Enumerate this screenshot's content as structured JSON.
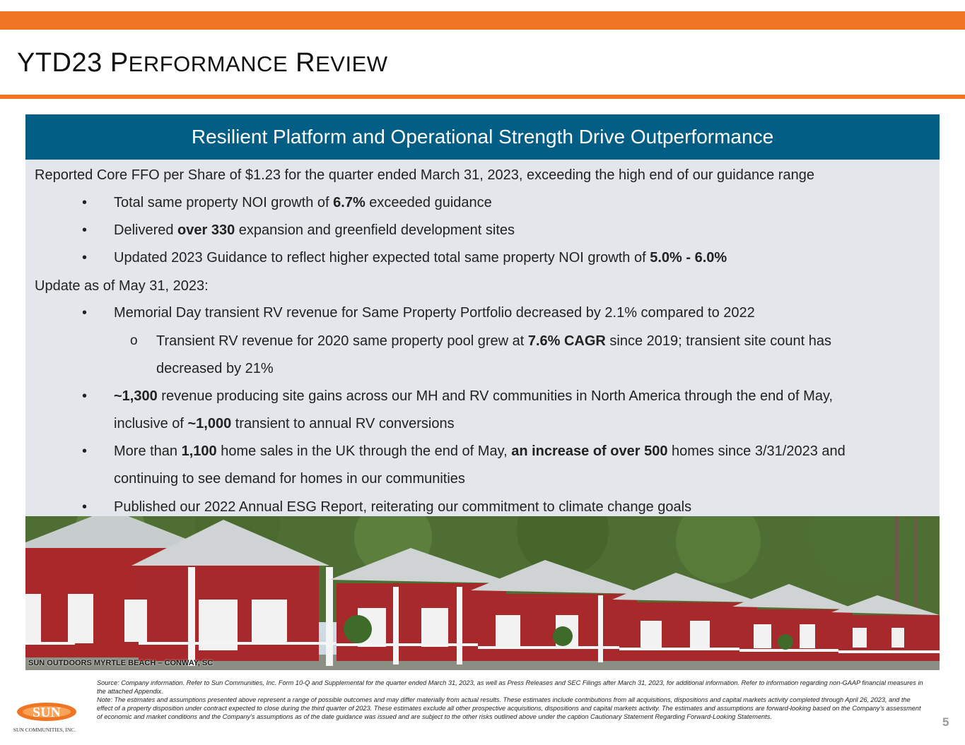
{
  "title_part1": "YTD23 P",
  "title_part2": "ERFORMANCE",
  "title_part3": " R",
  "title_part4": "EVIEW",
  "header": "Resilient Platform and Operational Strength Drive Outperformance",
  "intro": "Reported Core FFO per Share of $1.23 for the quarter ended March 31, 2023, exceeding the high end of our guidance range",
  "b1_a": "Total same property NOI growth of ",
  "b1_b": "6.7%",
  "b1_c": " exceeded guidance",
  "b2_a": "Delivered ",
  "b2_b": "over 330",
  "b2_c": " expansion and greenfield development sites",
  "b3_a": "Updated 2023 Guidance to reflect higher expected total same property NOI growth of ",
  "b3_b": "5.0% - 6.0%",
  "update_heading": "Update as of May 31, 2023:",
  "b4": "Memorial Day transient RV revenue for Same Property Portfolio decreased by 2.1% compared to 2022",
  "sub1_a": "Transient RV revenue for 2020 same property pool grew at ",
  "sub1_b": "7.6% CAGR",
  "sub1_c": " since 2019; transient site count has",
  "sub1_d": "decreased by 21%",
  "b5_a": "~1,300",
  "b5_b": " revenue producing site gains across our MH and RV communities in North America through the end of May,",
  "b5_c": "inclusive of ",
  "b5_d": "~1,000",
  "b5_e": " transient to annual RV conversions",
  "b6_a": "More than ",
  "b6_b": "1,100",
  "b6_c": " home sales in the UK through the end of May, ",
  "b6_d": "an increase of over 500",
  "b6_e": " homes since 3/31/2023 and",
  "b6_f": "continuing to see demand for homes in our communities",
  "b7": "Published our 2022 Annual ESG Report, reiterating our commitment to climate change goals",
  "bullet_char": "•",
  "sub_bullet_char": "o",
  "photo_caption": "SUN OUTDOORS MYRTLE BEACH – CONWAY, SC",
  "source_note": "Source: Company information. Refer to Sun Communities, Inc. Form 10-Q and Supplemental for the quarter ended March 31, 2023, as well as Press Releases and SEC Filings after March 31, 2023, for additional information. Refer to information regarding non-GAAP financial measures in the attached Appendix.",
  "note": "Note: The estimates and assumptions presented above represent a range of possible outcomes and may differ materially from actual results. These estimates include contributions from all acquisitions, dispositions and capital markets activity completed through April 26, 2023, and the effect of a property disposition under contract expected to close during the third quarter of 2023. These estimates exclude all other prospective acquisitions, dispositions and capital markets activity. The estimates and assumptions are forward-looking based on the Company’s assessment of economic and market conditions and the Company’s assumptions as of the date guidance was issued and are subject to the other risks outlined above under the caption Cautionary Statement Regarding Forward-Looking Statements.",
  "logo_text": "SUN",
  "logo_subtext": "SUN COMMUNITIES, INC.",
  "page_number": "5",
  "colors": {
    "accent": "#f07523",
    "header": "#035e86",
    "panel": "#e3e6ea"
  }
}
